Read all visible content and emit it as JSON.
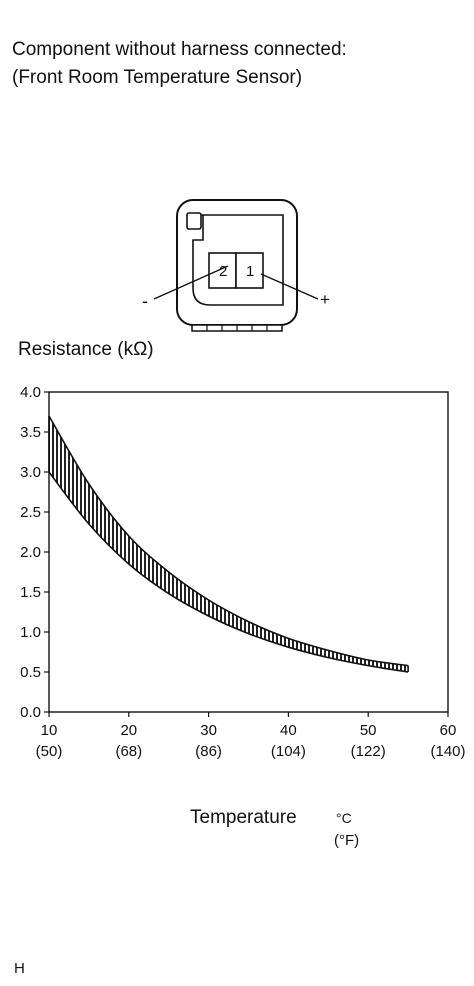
{
  "title": {
    "line1": "Component without harness connected:",
    "line2": "(Front Room Temperature Sensor)"
  },
  "connector": {
    "pins": [
      {
        "label": "2",
        "polarity": "-"
      },
      {
        "label": "1",
        "polarity": "+"
      }
    ]
  },
  "chart_data": {
    "type": "area",
    "title": "",
    "ylabel": "Resistance (kΩ)",
    "xlabel": "Temperature",
    "x_unit_primary": "°C",
    "x_unit_secondary": "(°F)",
    "xlim": [
      10,
      60
    ],
    "ylim": [
      0.0,
      4.0
    ],
    "x_ticks": [
      10,
      20,
      30,
      40,
      50,
      60
    ],
    "x_tick_labels_c": [
      "10",
      "20",
      "30",
      "40",
      "50",
      "60"
    ],
    "x_tick_labels_f": [
      "(50)",
      "(68)",
      "(86)",
      "(104)",
      "(122)",
      "(140)"
    ],
    "y_ticks": [
      0.0,
      0.5,
      1.0,
      1.5,
      2.0,
      2.5,
      3.0,
      3.5,
      4.0
    ],
    "y_tick_labels": [
      "0.0",
      "0.5",
      "1.0",
      "1.5",
      "2.0",
      "2.5",
      "3.0",
      "3.5",
      "4.0"
    ],
    "grid": false,
    "series": [
      {
        "x": [
          10,
          15,
          20,
          25,
          30,
          35,
          40,
          45,
          50,
          55
        ],
        "upper": [
          3.7,
          2.85,
          2.2,
          1.75,
          1.4,
          1.13,
          0.92,
          0.77,
          0.65,
          0.58
        ],
        "lower": [
          3.0,
          2.35,
          1.85,
          1.48,
          1.2,
          0.98,
          0.81,
          0.68,
          0.58,
          0.5
        ]
      }
    ]
  },
  "footer": {
    "code": "H"
  }
}
